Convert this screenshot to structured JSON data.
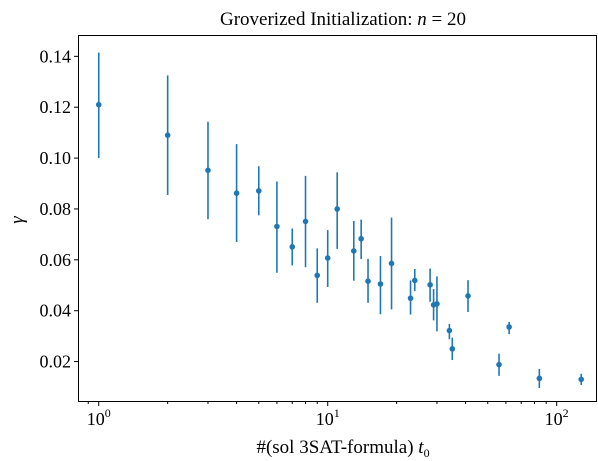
{
  "chart_data": {
    "type": "scatter",
    "title_prefix": "Groverized Initialization: ",
    "title_var": "n",
    "title_eq": " = 20",
    "xlabel_prefix": "#(sol 3SAT-formula) ",
    "xlabel_var": "t",
    "xlabel_sub": "0",
    "ylabel": "γ",
    "xscale": "log",
    "xlim": [
      0.82,
      150
    ],
    "ylim": [
      0.0045,
      0.148
    ],
    "xticks": [
      {
        "value": 1,
        "base": "10",
        "exp": "0"
      },
      {
        "value": 10,
        "base": "10",
        "exp": "1"
      },
      {
        "value": 100,
        "base": "10",
        "exp": "2"
      }
    ],
    "yticks": [
      {
        "value": 0.02,
        "label": "0.02"
      },
      {
        "value": 0.04,
        "label": "0.04"
      },
      {
        "value": 0.06,
        "label": "0.06"
      },
      {
        "value": 0.08,
        "label": "0.08"
      },
      {
        "value": 0.1,
        "label": "0.10"
      },
      {
        "value": 0.12,
        "label": "0.12"
      },
      {
        "value": 0.14,
        "label": "0.14"
      }
    ],
    "grid": false,
    "color": "#1f77b4",
    "points": [
      {
        "x": 1,
        "y": 0.121,
        "ylo": 0.1,
        "yhi": 0.1415
      },
      {
        "x": 2,
        "y": 0.109,
        "ylo": 0.0855,
        "yhi": 0.1325
      },
      {
        "x": 3,
        "y": 0.0952,
        "ylo": 0.076,
        "yhi": 0.1143
      },
      {
        "x": 4,
        "y": 0.0862,
        "ylo": 0.067,
        "yhi": 0.1055
      },
      {
        "x": 5,
        "y": 0.0871,
        "ylo": 0.0775,
        "yhi": 0.0968
      },
      {
        "x": 6,
        "y": 0.0731,
        "ylo": 0.0549,
        "yhi": 0.0908
      },
      {
        "x": 7,
        "y": 0.0651,
        "ylo": 0.0578,
        "yhi": 0.0723
      },
      {
        "x": 8,
        "y": 0.0751,
        "ylo": 0.0571,
        "yhi": 0.093
      },
      {
        "x": 9,
        "y": 0.0539,
        "ylo": 0.0431,
        "yhi": 0.0645
      },
      {
        "x": 10,
        "y": 0.0607,
        "ylo": 0.0493,
        "yhi": 0.0717
      },
      {
        "x": 11,
        "y": 0.08,
        "ylo": 0.0643,
        "yhi": 0.0944
      },
      {
        "x": 13,
        "y": 0.0635,
        "ylo": 0.0518,
        "yhi": 0.0753
      },
      {
        "x": 14,
        "y": 0.0683,
        "ylo": 0.0603,
        "yhi": 0.0758
      },
      {
        "x": 15,
        "y": 0.0516,
        "ylo": 0.0431,
        "yhi": 0.0604
      },
      {
        "x": 17,
        "y": 0.0505,
        "ylo": 0.0386,
        "yhi": 0.0615
      },
      {
        "x": 19,
        "y": 0.0586,
        "ylo": 0.0405,
        "yhi": 0.0766
      },
      {
        "x": 23,
        "y": 0.0449,
        "ylo": 0.0385,
        "yhi": 0.0519
      },
      {
        "x": 24,
        "y": 0.0519,
        "ylo": 0.0477,
        "yhi": 0.0564
      },
      {
        "x": 28,
        "y": 0.0502,
        "ylo": 0.0435,
        "yhi": 0.0566
      },
      {
        "x": 29,
        "y": 0.0423,
        "ylo": 0.0362,
        "yhi": 0.0485
      },
      {
        "x": 30,
        "y": 0.0427,
        "ylo": 0.0319,
        "yhi": 0.0535
      },
      {
        "x": 34,
        "y": 0.0322,
        "ylo": 0.0288,
        "yhi": 0.0348
      },
      {
        "x": 35,
        "y": 0.025,
        "ylo": 0.0206,
        "yhi": 0.0294
      },
      {
        "x": 41,
        "y": 0.0458,
        "ylo": 0.0395,
        "yhi": 0.052
      },
      {
        "x": 56,
        "y": 0.0188,
        "ylo": 0.0144,
        "yhi": 0.0231
      },
      {
        "x": 62,
        "y": 0.0336,
        "ylo": 0.0308,
        "yhi": 0.0356
      },
      {
        "x": 84,
        "y": 0.0134,
        "ylo": 0.0096,
        "yhi": 0.0171
      },
      {
        "x": 128,
        "y": 0.013,
        "ylo": 0.0108,
        "yhi": 0.0152
      }
    ]
  }
}
